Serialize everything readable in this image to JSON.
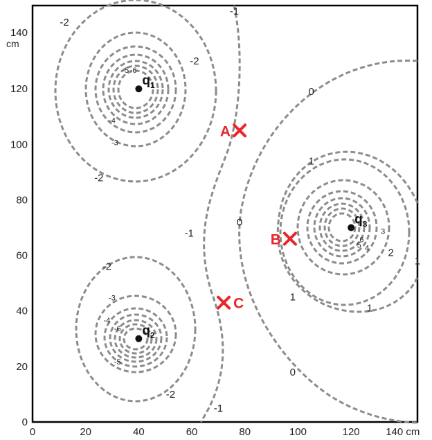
{
  "axes": {
    "x_ticks": [
      "0",
      "20",
      "40",
      "60",
      "80",
      "100",
      "120"
    ],
    "x_last_tick": "140 cm",
    "y_ticks": [
      "0",
      "20",
      "40",
      "60",
      "80",
      "100",
      "120"
    ],
    "y_top_tick": "140",
    "y_unit": "cm",
    "x_range": [
      0,
      145
    ],
    "y_range": [
      0,
      150
    ]
  },
  "charges": [
    {
      "symbol": "q",
      "sub": "1",
      "x": 40,
      "y": 120
    },
    {
      "symbol": "q",
      "sub": "2",
      "x": 40,
      "y": 30
    },
    {
      "symbol": "q",
      "sub": "3",
      "x": 120,
      "y": 70
    }
  ],
  "points": [
    {
      "label": "A",
      "x": 78,
      "y": 105
    },
    {
      "label": "B",
      "x": 97,
      "y": 66
    },
    {
      "label": "C",
      "x": 72,
      "y": 43
    }
  ],
  "contour_labels": [
    {
      "text": "-2",
      "x": 12,
      "y": 144
    },
    {
      "text": "-2",
      "x": 61,
      "y": 130
    },
    {
      "text": "-5",
      "x": 35,
      "y": 127
    },
    {
      "text": "-6",
      "x": 38,
      "y": 127
    },
    {
      "text": "-4",
      "x": 30,
      "y": 109
    },
    {
      "text": "-3",
      "x": 31,
      "y": 101
    },
    {
      "text": "-2",
      "x": 25,
      "y": 88
    },
    {
      "text": "-1",
      "x": 76,
      "y": 148
    },
    {
      "text": "-1",
      "x": 59,
      "y": 68
    },
    {
      "text": "-1",
      "x": 70,
      "y": 5
    },
    {
      "text": "0",
      "x": 105,
      "y": 119
    },
    {
      "text": "0",
      "x": 78,
      "y": 72
    },
    {
      "text": "0",
      "x": 98,
      "y": 18
    },
    {
      "text": "1",
      "x": 105,
      "y": 94
    },
    {
      "text": "1",
      "x": 98,
      "y": 45
    },
    {
      "text": "1",
      "x": 127,
      "y": 41
    },
    {
      "text": "1",
      "x": 145,
      "y": 58
    },
    {
      "text": "2",
      "x": 135,
      "y": 61
    },
    {
      "text": "3",
      "x": 132,
      "y": 69
    },
    {
      "text": "4",
      "x": 126,
      "y": 63
    },
    {
      "text": "5",
      "x": 123,
      "y": 64
    },
    {
      "text": "6",
      "x": 124,
      "y": 66
    },
    {
      "text": "-2",
      "x": 28,
      "y": 56
    },
    {
      "text": "-3",
      "x": 30,
      "y": 45
    },
    {
      "text": "-4",
      "x": 28,
      "y": 37
    },
    {
      "text": "-6",
      "x": 32,
      "y": 34
    },
    {
      "text": "-5",
      "x": 32,
      "y": 22
    },
    {
      "text": "-2",
      "x": 52,
      "y": 10
    }
  ],
  "colors": {
    "contour": "#8c8c8c",
    "marker": "#e8262b",
    "charge": "#111111"
  }
}
